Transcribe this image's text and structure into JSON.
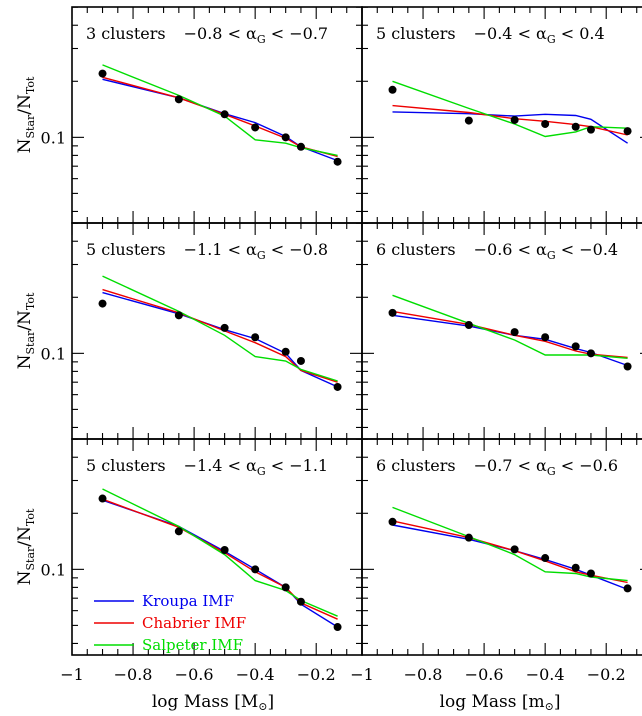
{
  "figure": {
    "ylabel_main": "N",
    "ylabel_sub1": "Star",
    "ylabel_sep": "/N",
    "ylabel_sub2": "Tot",
    "xlabel_left": "log Mass [M",
    "xlabel_right": "log Mass [m",
    "xlabel_sun": "⊙",
    "xlabel_close": "]",
    "ytick_label": "0.1",
    "xtick_labels": [
      "−1",
      "−0.8",
      "−0.6",
      "−0.4",
      "−0.2"
    ]
  },
  "colors": {
    "kroupa": "#0000ee",
    "chabrier": "#ee0000",
    "salpeter": "#00dd00",
    "points": "#000000"
  },
  "legend": [
    {
      "key": "kroupa",
      "label": "Kroupa IMF"
    },
    {
      "key": "chabrier",
      "label": "Chabrier IMF"
    },
    {
      "key": "salpeter",
      "label": "Salpeter IMF"
    }
  ],
  "chart_data": [
    {
      "type": "line",
      "clusters": "3 clusters",
      "alpha_lo": "−0.8",
      "alpha_hi": "−0.7",
      "xlim": [
        -1.0,
        -0.05
      ],
      "ylim_log10": [
        -1.46,
        -0.3
      ],
      "yscale": "log",
      "points": {
        "x": [
          -0.9,
          -0.65,
          -0.5,
          -0.4,
          -0.3,
          -0.25,
          -0.13
        ],
        "y": [
          0.22,
          0.16,
          0.133,
          0.113,
          0.1,
          0.089,
          0.074
        ]
      },
      "series": [
        {
          "key": "kroupa",
          "x": [
            -0.9,
            -0.65,
            -0.5,
            -0.4,
            -0.3,
            -0.25,
            -0.13
          ],
          "y": [
            0.205,
            0.163,
            0.134,
            0.12,
            0.101,
            0.089,
            0.075
          ]
        },
        {
          "key": "chabrier",
          "x": [
            -0.9,
            -0.65,
            -0.5,
            -0.4,
            -0.3,
            -0.25,
            -0.13
          ],
          "y": [
            0.21,
            0.163,
            0.133,
            0.115,
            0.099,
            0.089,
            0.079
          ]
        },
        {
          "key": "salpeter",
          "x": [
            -0.9,
            -0.65,
            -0.5,
            -0.4,
            -0.3,
            -0.25,
            -0.13
          ],
          "y": [
            0.245,
            0.168,
            0.13,
            0.097,
            0.093,
            0.088,
            0.08
          ]
        }
      ]
    },
    {
      "type": "line",
      "clusters": "5 clusters",
      "alpha_lo": "−0.4",
      "alpha_hi": "0.4",
      "xlim": [
        -1.0,
        -0.05
      ],
      "ylim_log10": [
        -1.46,
        -0.3
      ],
      "yscale": "log",
      "points": {
        "x": [
          -0.9,
          -0.65,
          -0.5,
          -0.4,
          -0.3,
          -0.25,
          -0.13
        ],
        "y": [
          0.18,
          0.123,
          0.124,
          0.118,
          0.114,
          0.11,
          0.108
        ]
      },
      "series": [
        {
          "key": "kroupa",
          "x": [
            -0.9,
            -0.65,
            -0.5,
            -0.4,
            -0.3,
            -0.25,
            -0.13
          ],
          "y": [
            0.137,
            0.134,
            0.13,
            0.133,
            0.131,
            0.125,
            0.093
          ]
        },
        {
          "key": "chabrier",
          "x": [
            -0.9,
            -0.65,
            -0.5,
            -0.4,
            -0.3,
            -0.25,
            -0.13
          ],
          "y": [
            0.148,
            0.136,
            0.126,
            0.122,
            0.117,
            0.114,
            0.103
          ]
        },
        {
          "key": "salpeter",
          "x": [
            -0.9,
            -0.65,
            -0.5,
            -0.4,
            -0.3,
            -0.25,
            -0.13
          ],
          "y": [
            0.2,
            0.143,
            0.118,
            0.101,
            0.107,
            0.114,
            0.112
          ]
        }
      ]
    },
    {
      "type": "line",
      "clusters": "5 clusters",
      "alpha_lo": "−1.1",
      "alpha_hi": "−0.8",
      "xlim": [
        -1.0,
        -0.05
      ],
      "ylim_log10": [
        -1.46,
        -0.3
      ],
      "yscale": "log",
      "points": {
        "x": [
          -0.9,
          -0.65,
          -0.5,
          -0.4,
          -0.3,
          -0.25,
          -0.13
        ],
        "y": [
          0.185,
          0.16,
          0.137,
          0.122,
          0.102,
          0.091,
          0.066
        ]
      },
      "series": [
        {
          "key": "kroupa",
          "x": [
            -0.9,
            -0.65,
            -0.5,
            -0.4,
            -0.3,
            -0.25,
            -0.13
          ],
          "y": [
            0.212,
            0.163,
            0.134,
            0.12,
            0.1,
            0.081,
            0.066
          ]
        },
        {
          "key": "chabrier",
          "x": [
            -0.9,
            -0.65,
            -0.5,
            -0.4,
            -0.3,
            -0.25,
            -0.13
          ],
          "y": [
            0.22,
            0.165,
            0.132,
            0.114,
            0.096,
            0.081,
            0.07
          ]
        },
        {
          "key": "salpeter",
          "x": [
            -0.9,
            -0.65,
            -0.5,
            -0.4,
            -0.3,
            -0.25,
            -0.13
          ],
          "y": [
            0.26,
            0.168,
            0.125,
            0.096,
            0.091,
            0.082,
            0.071
          ]
        }
      ]
    },
    {
      "type": "line",
      "clusters": "6 clusters",
      "alpha_lo": "−0.6",
      "alpha_hi": "−0.4",
      "xlim": [
        -1.0,
        -0.05
      ],
      "ylim_log10": [
        -1.46,
        -0.3
      ],
      "yscale": "log",
      "points": {
        "x": [
          -0.9,
          -0.65,
          -0.5,
          -0.4,
          -0.3,
          -0.25,
          -0.13
        ],
        "y": [
          0.165,
          0.142,
          0.13,
          0.122,
          0.109,
          0.1,
          0.085
        ]
      },
      "series": [
        {
          "key": "kroupa",
          "x": [
            -0.9,
            -0.65,
            -0.5,
            -0.4,
            -0.3,
            -0.25,
            -0.13
          ],
          "y": [
            0.16,
            0.14,
            0.125,
            0.119,
            0.106,
            0.101,
            0.086
          ]
        },
        {
          "key": "chabrier",
          "x": [
            -0.9,
            -0.65,
            -0.5,
            -0.4,
            -0.3,
            -0.25,
            -0.13
          ],
          "y": [
            0.168,
            0.143,
            0.125,
            0.116,
            0.103,
            0.099,
            0.095
          ]
        },
        {
          "key": "salpeter",
          "x": [
            -0.9,
            -0.65,
            -0.5,
            -0.4,
            -0.3,
            -0.25,
            -0.13
          ],
          "y": [
            0.205,
            0.145,
            0.118,
            0.098,
            0.098,
            0.098,
            0.094
          ]
        }
      ]
    },
    {
      "type": "line",
      "clusters": "5 clusters",
      "alpha_lo": "−1.4",
      "alpha_hi": "−1.1",
      "xlim": [
        -1.0,
        -0.05
      ],
      "ylim_log10": [
        -1.46,
        -0.3
      ],
      "yscale": "log",
      "points": {
        "x": [
          -0.9,
          -0.65,
          -0.5,
          -0.4,
          -0.3,
          -0.25,
          -0.13
        ],
        "y": [
          0.24,
          0.16,
          0.127,
          0.1,
          0.08,
          0.067,
          0.049
        ]
      },
      "series": [
        {
          "key": "kroupa",
          "x": [
            -0.9,
            -0.65,
            -0.5,
            -0.4,
            -0.3,
            -0.25,
            -0.13
          ],
          "y": [
            0.235,
            0.17,
            0.125,
            0.1,
            0.08,
            0.065,
            0.049
          ]
        },
        {
          "key": "chabrier",
          "x": [
            -0.9,
            -0.65,
            -0.5,
            -0.4,
            -0.3,
            -0.25,
            -0.13
          ],
          "y": [
            0.238,
            0.168,
            0.123,
            0.097,
            0.08,
            0.066,
            0.054
          ]
        },
        {
          "key": "salpeter",
          "x": [
            -0.9,
            -0.65,
            -0.5,
            -0.4,
            -0.3,
            -0.25,
            -0.13
          ],
          "y": [
            0.27,
            0.17,
            0.12,
            0.087,
            0.077,
            0.068,
            0.056
          ]
        }
      ]
    },
    {
      "type": "line",
      "clusters": "6 clusters",
      "alpha_lo": "−0.7",
      "alpha_hi": "−0.6",
      "xlim": [
        -1.0,
        -0.05
      ],
      "ylim_log10": [
        -1.46,
        -0.3
      ],
      "yscale": "log",
      "points": {
        "x": [
          -0.9,
          -0.65,
          -0.5,
          -0.4,
          -0.3,
          -0.25,
          -0.13
        ],
        "y": [
          0.18,
          0.148,
          0.128,
          0.115,
          0.102,
          0.095,
          0.079
        ]
      },
      "series": [
        {
          "key": "kroupa",
          "x": [
            -0.9,
            -0.65,
            -0.5,
            -0.4,
            -0.3,
            -0.25,
            -0.13
          ],
          "y": [
            0.173,
            0.145,
            0.126,
            0.113,
            0.1,
            0.093,
            0.078
          ]
        },
        {
          "key": "chabrier",
          "x": [
            -0.9,
            -0.65,
            -0.5,
            -0.4,
            -0.3,
            -0.25,
            -0.13
          ],
          "y": [
            0.182,
            0.148,
            0.126,
            0.111,
            0.097,
            0.093,
            0.085
          ]
        },
        {
          "key": "salpeter",
          "x": [
            -0.9,
            -0.65,
            -0.5,
            -0.4,
            -0.3,
            -0.25,
            -0.13
          ],
          "y": [
            0.215,
            0.15,
            0.12,
            0.097,
            0.095,
            0.091,
            0.087
          ]
        }
      ]
    }
  ]
}
